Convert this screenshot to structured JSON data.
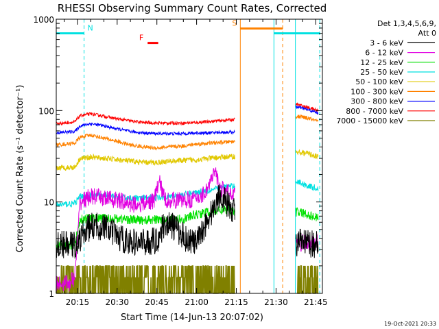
{
  "chart_data": {
    "type": "line",
    "title": "RHESSI Observing Summary Count Rates, Corrected",
    "ylabel": "Corrected Count Rate (s⁻¹ detector⁻¹)",
    "xlabel": "Start Time (14-Jun-13 20:07:02)",
    "y_scale": "log",
    "ylim": [
      1,
      1000
    ],
    "xlim_minutes": [
      7.0,
      107.5
    ],
    "x_ticks": [
      {
        "label": "20:15",
        "t": 15
      },
      {
        "label": "20:30",
        "t": 30
      },
      {
        "label": "20:45",
        "t": 45
      },
      {
        "label": "21:00",
        "t": 60
      },
      {
        "label": "21:15",
        "t": 75
      },
      {
        "label": "21:30",
        "t": 90
      },
      {
        "label": "21:45",
        "t": 105
      }
    ],
    "y_ticks": [
      {
        "label": "1",
        "v": 1
      },
      {
        "label": "10",
        "v": 10
      },
      {
        "label": "100",
        "v": 100
      },
      {
        "label": "1000",
        "v": 1000
      }
    ],
    "legend_header": [
      "Det 1,3,4,5,6,9,",
      "Att 0"
    ],
    "series": [
      {
        "name": "3 - 6 keV",
        "color": "#000000",
        "points": [
          [
            7,
            3.4
          ],
          [
            15,
            3.4
          ],
          [
            17,
            4.5
          ],
          [
            20,
            5.4
          ],
          [
            25,
            5.4
          ],
          [
            30,
            4.2
          ],
          [
            35,
            3.6
          ],
          [
            40,
            3.6
          ],
          [
            45,
            3.8
          ],
          [
            48,
            6.0
          ],
          [
            52,
            5.2
          ],
          [
            56,
            4.0
          ],
          [
            60,
            3.5
          ],
          [
            63,
            5.5
          ],
          [
            66,
            8.0
          ],
          [
            69,
            12.5
          ],
          [
            72,
            9.0
          ],
          [
            74.5,
            8.0
          ]
        ],
        "points2": [
          [
            97.5,
            3.6
          ],
          [
            102,
            3.5
          ],
          [
            106,
            3.4
          ]
        ]
      },
      {
        "name": "6 - 12 keV",
        "color": "#e100e1",
        "points": [
          [
            7,
            1.3
          ],
          [
            12,
            1.3
          ],
          [
            14,
            1.5
          ],
          [
            16,
            10
          ],
          [
            20,
            11.5
          ],
          [
            25,
            11.0
          ],
          [
            30,
            10.5
          ],
          [
            35,
            9.5
          ],
          [
            40,
            9.5
          ],
          [
            44,
            10.5
          ],
          [
            46,
            17
          ],
          [
            48,
            10.5
          ],
          [
            52,
            10.5
          ],
          [
            56,
            10.5
          ],
          [
            60,
            10.8
          ],
          [
            63,
            12.5
          ],
          [
            65,
            16
          ],
          [
            67,
            21
          ],
          [
            69,
            14
          ],
          [
            72,
            12.5
          ],
          [
            74.5,
            13
          ]
        ],
        "points2": [
          [
            97.5,
            3.6
          ],
          [
            102,
            3.5
          ],
          [
            106,
            3.6
          ]
        ]
      },
      {
        "name": "12 - 25 keV",
        "color": "#00e100",
        "points": [
          [
            7,
            3.3
          ],
          [
            14,
            3.4
          ],
          [
            16,
            6.5
          ],
          [
            20,
            6.6
          ],
          [
            25,
            6.6
          ],
          [
            30,
            6.6
          ],
          [
            35,
            6.4
          ],
          [
            40,
            6.3
          ],
          [
            45,
            6.4
          ],
          [
            50,
            6.4
          ],
          [
            55,
            6.5
          ],
          [
            60,
            7.3
          ],
          [
            65,
            7.8
          ],
          [
            69,
            8.2
          ],
          [
            72,
            8.0
          ],
          [
            74.5,
            8.1
          ]
        ],
        "points2": [
          [
            97.5,
            7.8
          ],
          [
            102,
            7.3
          ],
          [
            106,
            6.6
          ]
        ]
      },
      {
        "name": "25 - 50 keV",
        "color": "#00e1e1",
        "points": [
          [
            7,
            9.3
          ],
          [
            14,
            9.6
          ],
          [
            16,
            11.5
          ],
          [
            20,
            11.8
          ],
          [
            25,
            11.8
          ],
          [
            30,
            11.3
          ],
          [
            35,
            11.0
          ],
          [
            40,
            11.0
          ],
          [
            45,
            11.2
          ],
          [
            50,
            11.5
          ],
          [
            55,
            12.0
          ],
          [
            60,
            12.8
          ],
          [
            65,
            13.5
          ],
          [
            70,
            14.5
          ],
          [
            74.5,
            15
          ]
        ],
        "points2": [
          [
            97.5,
            17
          ],
          [
            102,
            15
          ],
          [
            106,
            14
          ]
        ]
      },
      {
        "name": "50 - 100 keV",
        "color": "#e1c800",
        "points": [
          [
            7,
            23.5
          ],
          [
            14,
            24
          ],
          [
            16,
            30
          ],
          [
            20,
            31
          ],
          [
            25,
            30
          ],
          [
            30,
            29
          ],
          [
            35,
            28
          ],
          [
            40,
            27
          ],
          [
            45,
            27
          ],
          [
            50,
            28
          ],
          [
            55,
            28.5
          ],
          [
            60,
            29
          ],
          [
            65,
            30
          ],
          [
            70,
            31
          ],
          [
            74.5,
            31.5
          ]
        ],
        "points2": [
          [
            97.5,
            35
          ],
          [
            102,
            34
          ],
          [
            106,
            31
          ]
        ]
      },
      {
        "name": "100 - 300 keV",
        "color": "#ff8200",
        "points": [
          [
            7,
            42
          ],
          [
            14,
            44
          ],
          [
            16,
            51
          ],
          [
            20,
            54
          ],
          [
            25,
            50
          ],
          [
            30,
            46
          ],
          [
            35,
            42
          ],
          [
            40,
            40
          ],
          [
            45,
            39
          ],
          [
            50,
            40
          ],
          [
            55,
            41
          ],
          [
            60,
            43
          ],
          [
            65,
            44
          ],
          [
            70,
            45
          ],
          [
            74.5,
            46
          ]
        ],
        "points2": [
          [
            97.5,
            86
          ],
          [
            100,
            85
          ],
          [
            103,
            81
          ],
          [
            106,
            75
          ]
        ]
      },
      {
        "name": "300 - 800 keV",
        "color": "#0000ff",
        "points": [
          [
            7,
            57
          ],
          [
            14,
            59
          ],
          [
            16,
            68
          ],
          [
            20,
            72
          ],
          [
            25,
            68
          ],
          [
            30,
            63
          ],
          [
            35,
            59
          ],
          [
            40,
            57
          ],
          [
            45,
            56
          ],
          [
            50,
            56
          ],
          [
            55,
            56
          ],
          [
            60,
            57
          ],
          [
            65,
            57
          ],
          [
            70,
            58
          ],
          [
            74.5,
            58
          ]
        ],
        "points2": [
          [
            97.5,
            110
          ],
          [
            100,
            106
          ],
          [
            103,
            100
          ],
          [
            106,
            94
          ]
        ]
      },
      {
        "name": "800 - 7000 keV",
        "color": "#ff0000",
        "points": [
          [
            7,
            72
          ],
          [
            14,
            75
          ],
          [
            16,
            88
          ],
          [
            20,
            92
          ],
          [
            25,
            87
          ],
          [
            30,
            81
          ],
          [
            35,
            77
          ],
          [
            40,
            74
          ],
          [
            45,
            73
          ],
          [
            50,
            73
          ],
          [
            55,
            73
          ],
          [
            60,
            74
          ],
          [
            65,
            76
          ],
          [
            70,
            78
          ],
          [
            74.5,
            80
          ]
        ],
        "points2": [
          [
            97.5,
            118
          ],
          [
            100,
            112
          ],
          [
            103,
            106
          ],
          [
            106,
            100
          ]
        ]
      },
      {
        "name": "7000 - 15000 keV",
        "color": "#808000",
        "points": [
          [
            7,
            1.5
          ],
          [
            74.5,
            1.5
          ]
        ],
        "points2": [
          [
            98,
            1.5
          ],
          [
            106,
            1.5
          ]
        ]
      }
    ],
    "annotations": [
      {
        "text": "N",
        "color": "#00e1e1",
        "t_start": 7,
        "t_end": 17.5,
        "v": 700
      },
      {
        "text": "F",
        "color": "#ff0000",
        "t_start": 41.5,
        "t_end": 45.5,
        "v": 550
      },
      {
        "text": "S",
        "color": "#ff8200",
        "t_start": 76.5,
        "t_end": 92.5,
        "v": 790
      },
      {
        "text": "",
        "color": "#00e1e1",
        "t_start": 89.2,
        "t_end": 106.5,
        "v": 700
      }
    ],
    "markers": [
      {
        "t": 17.5,
        "color": "#00e1e1",
        "style": "dashed"
      },
      {
        "t": 76.5,
        "color": "#ff8200",
        "style": "solid"
      },
      {
        "t": 89.2,
        "color": "#00e1e1",
        "style": "solid"
      },
      {
        "t": 92.5,
        "color": "#ff8200",
        "style": "dashed"
      },
      {
        "t": 97.3,
        "color": "#00e1e1",
        "style": "solid"
      },
      {
        "t": 106.5,
        "color": "#00e1e1",
        "style": "dashed"
      }
    ],
    "grid": false,
    "legend_placement": "right"
  },
  "footer_date": "19-Oct-2021 20:33"
}
